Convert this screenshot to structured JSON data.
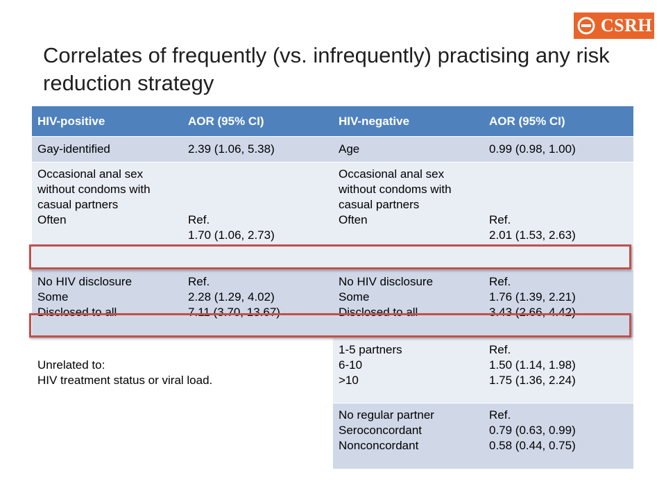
{
  "logo": {
    "text": "CSRH",
    "color": "#e8642a"
  },
  "title": "Correlates of frequently (vs. infrequently) practising any risk reduction strategy",
  "table": {
    "headers": [
      "HIV-positive",
      "AOR (95% CI)",
      "HIV-negative",
      "AOR (95% CI)"
    ],
    "row1": [
      "Gay-identified",
      "2.39 (1.06, 5.38)",
      "Age",
      "0.99 (0.98, 1.00)"
    ],
    "row2": [
      "Occasional anal sex without condoms with casual partners\n      Often",
      "\n\n\nRef.\n1.70 (1.06, 2.73)",
      "Occasional anal sex without condoms with casual partners\n      Often",
      "\n\n\nRef.\n2.01 (1.53, 2.63)"
    ],
    "row3": [
      "No HIV disclosure\nSome\nDisclosed to all",
      "Ref.\n2.28 (1.29, 4.02)\n7.11 (3.70, 13.67)",
      "No HIV disclosure\nSome\nDisclosed to all",
      "Ref.\n1.76 (1.39, 2.21)\n3.43 (2.66, 4.42)"
    ],
    "row4": [
      "\nUnrelated to:\nHIV treatment status or viral load.",
      "",
      "1-5 partners\n6-10\n>10",
      "Ref.\n1.50 (1.14, 1.98)\n1.75 (1.36, 2.24)"
    ],
    "row5": [
      "",
      "",
      "No regular partner\nSeroconcordant\nNonconcordant",
      "Ref.\n0.79 (0.63, 0.99)\n0.58 (0.44, 0.75)"
    ]
  },
  "colors": {
    "header": "#4f81bd",
    "band_dark": "#d0d8e8",
    "band_light": "#e9edf4",
    "highlight": "#c0504d"
  }
}
